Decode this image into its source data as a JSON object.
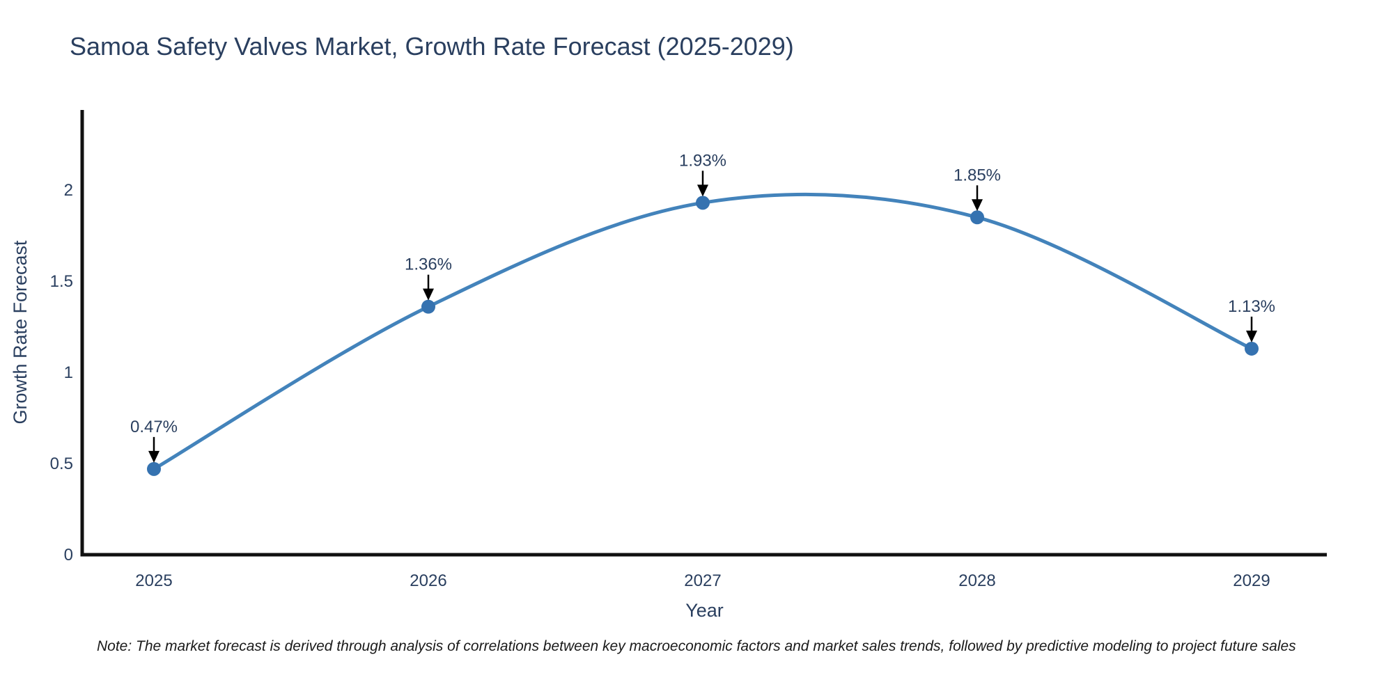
{
  "title": "Samoa Safety Valves Market, Growth Rate Forecast (2025-2029)",
  "note": "Note: The market forecast is derived through analysis of correlations between key macroeconomic factors and market sales trends, followed by predictive modeling to project future sales",
  "chart_data": {
    "type": "line",
    "line_shape": "spline",
    "title": "Samoa Safety Valves Market, Growth Rate Forecast (2025-2029)",
    "xlabel": "Year",
    "ylabel": "Growth Rate Forecast",
    "x": [
      "2025",
      "2026",
      "2027",
      "2028",
      "2029"
    ],
    "y": [
      0.47,
      1.36,
      1.93,
      1.85,
      1.13
    ],
    "point_labels": [
      "0.47%",
      "1.36%",
      "1.93%",
      "1.85%",
      "1.13%"
    ],
    "yticks": [
      "0",
      "0.5",
      "1",
      "1.5",
      "2"
    ],
    "ytick_values": [
      0,
      0.5,
      1,
      1.5,
      2
    ],
    "ylim": [
      0,
      2.45
    ],
    "grid": false,
    "legend_position": "none",
    "colors": {
      "line": "#4383bb",
      "marker": "#3572b0",
      "text": "#2a3f5f",
      "axis": "#111111",
      "annotation_arrow": "#000000"
    }
  }
}
